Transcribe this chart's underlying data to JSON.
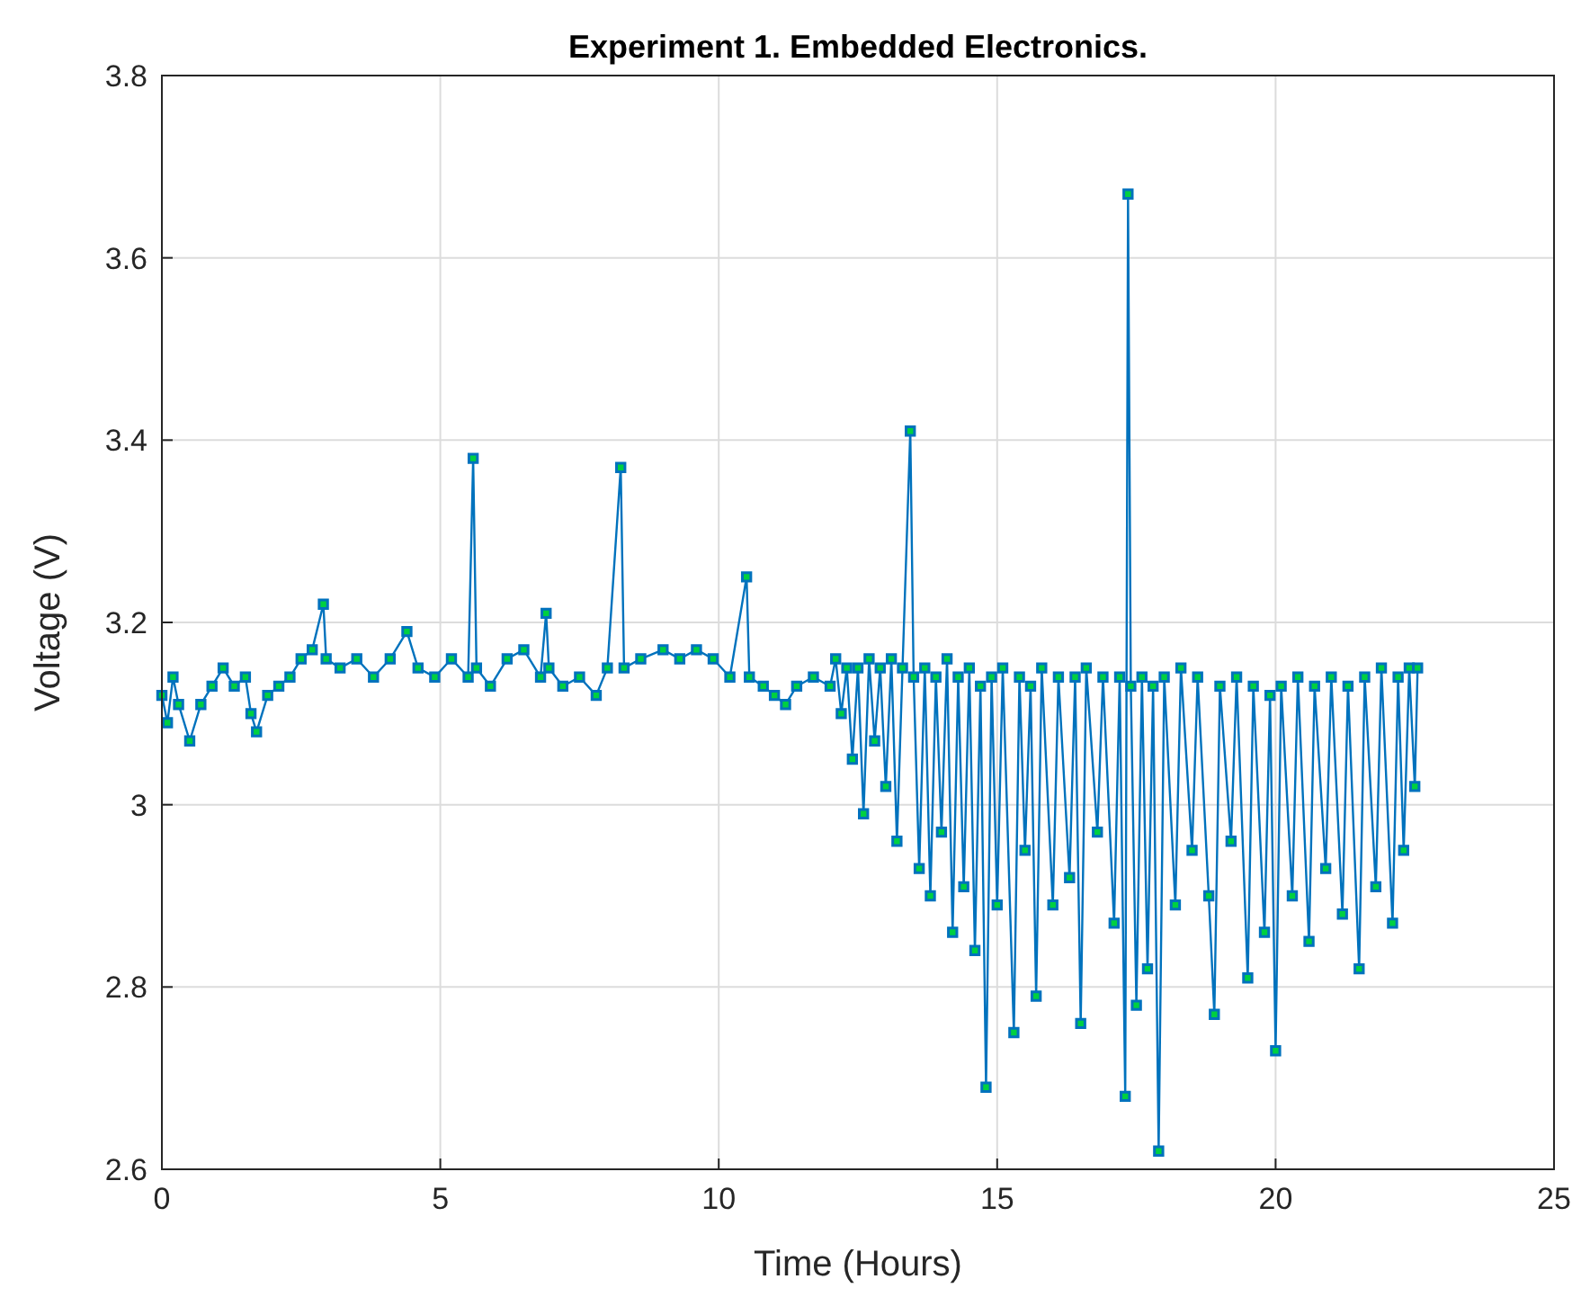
{
  "chart_data": {
    "type": "line",
    "title": "Experiment 1. Embedded Electronics.",
    "xlabel": "Time (Hours)",
    "ylabel": "Voltage (V)",
    "xlim": [
      0,
      25
    ],
    "xticks": [
      0,
      5,
      10,
      15,
      20,
      25
    ],
    "ylim": [
      2.6,
      3.8
    ],
    "yticks": [
      2.6,
      2.8,
      3,
      3.2,
      3.4,
      3.6,
      3.8
    ],
    "grid": true,
    "marker": "square",
    "line_style": "solid",
    "series": [
      {
        "color": "#0072bd",
        "x": [
          0,
          0.1,
          0.2,
          0.3,
          0.5,
          0.7,
          0.9,
          1.1,
          1.3,
          1.5,
          1.6,
          1.7,
          1.9,
          2.1,
          2.3,
          2.5,
          2.7,
          2.9,
          2.95,
          3.2,
          3.5,
          3.8,
          4.1,
          4.4,
          4.6,
          4.9,
          5.2,
          5.5,
          5.59,
          5.65,
          5.9,
          6.2,
          6.5,
          6.8,
          6.9,
          6.95,
          7.2,
          7.5,
          7.8,
          8.0,
          8.24,
          8.3,
          8.6,
          9.0,
          9.3,
          9.6,
          9.9,
          10.2,
          10.5,
          10.55,
          10.8,
          11.0,
          11.2,
          11.4,
          11.7,
          12.0,
          12.1,
          12.2,
          12.3,
          12.4,
          12.5,
          12.6,
          12.7,
          12.8,
          12.9,
          13.0,
          13.1,
          13.2,
          13.3,
          13.44,
          13.5,
          13.6,
          13.7,
          13.8,
          13.9,
          14.0,
          14.1,
          14.2,
          14.3,
          14.4,
          14.5,
          14.6,
          14.7,
          14.8,
          14.9,
          15.0,
          15.1,
          15.3,
          15.4,
          15.5,
          15.6,
          15.7,
          15.8,
          16.0,
          16.1,
          16.3,
          16.4,
          16.5,
          16.6,
          16.8,
          16.9,
          17.1,
          17.2,
          17.3,
          17.35,
          17.4,
          17.5,
          17.6,
          17.7,
          17.8,
          17.9,
          18.0,
          18.2,
          18.3,
          18.5,
          18.6,
          18.8,
          18.9,
          19.0,
          19.2,
          19.3,
          19.5,
          19.6,
          19.8,
          19.9,
          20.0,
          20.1,
          20.3,
          20.4,
          20.6,
          20.7,
          20.9,
          21.0,
          21.2,
          21.3,
          21.5,
          21.6,
          21.8,
          21.9,
          22.1,
          22.2,
          22.3,
          22.4,
          22.5,
          22.55
        ],
        "values": [
          3.12,
          3.09,
          3.14,
          3.11,
          3.07,
          3.11,
          3.13,
          3.15,
          3.13,
          3.14,
          3.1,
          3.08,
          3.12,
          3.13,
          3.14,
          3.16,
          3.17,
          3.22,
          3.16,
          3.15,
          3.16,
          3.14,
          3.16,
          3.19,
          3.15,
          3.14,
          3.16,
          3.14,
          3.38,
          3.15,
          3.13,
          3.16,
          3.17,
          3.14,
          3.21,
          3.15,
          3.13,
          3.14,
          3.12,
          3.15,
          3.37,
          3.15,
          3.16,
          3.17,
          3.16,
          3.17,
          3.16,
          3.14,
          3.25,
          3.14,
          3.13,
          3.12,
          3.11,
          3.13,
          3.14,
          3.13,
          3.16,
          3.1,
          3.15,
          3.05,
          3.15,
          2.99,
          3.16,
          3.07,
          3.15,
          3.02,
          3.16,
          2.96,
          3.15,
          3.41,
          3.14,
          2.93,
          3.15,
          2.9,
          3.14,
          2.97,
          3.16,
          2.86,
          3.14,
          2.91,
          3.15,
          2.84,
          3.13,
          2.69,
          3.14,
          2.89,
          3.15,
          2.75,
          3.14,
          2.95,
          3.13,
          2.79,
          3.15,
          2.89,
          3.14,
          2.92,
          3.14,
          2.76,
          3.15,
          2.97,
          3.14,
          2.87,
          3.14,
          2.68,
          3.67,
          3.13,
          2.78,
          3.14,
          2.82,
          3.13,
          2.62,
          3.14,
          2.89,
          3.15,
          2.95,
          3.14,
          2.9,
          2.77,
          3.13,
          2.96,
          3.14,
          2.81,
          3.13,
          2.86,
          3.12,
          2.73,
          3.13,
          2.9,
          3.14,
          2.85,
          3.13,
          2.93,
          3.14,
          2.88,
          3.13,
          2.82,
          3.14,
          2.91,
          3.15,
          2.87,
          3.14,
          2.95,
          3.15,
          3.02,
          3.15
        ]
      }
    ]
  }
}
